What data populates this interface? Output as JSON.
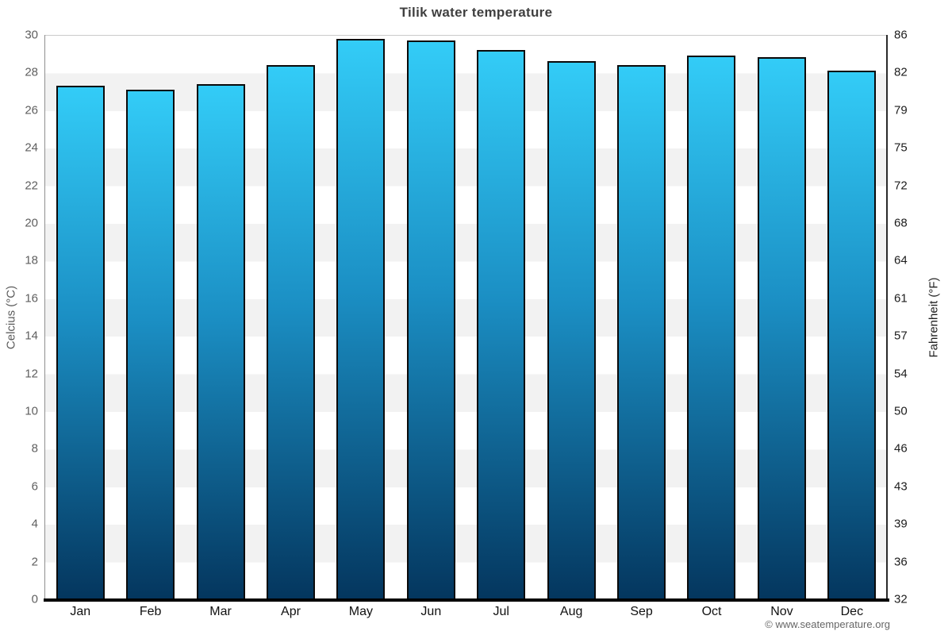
{
  "title": "Tilik water temperature",
  "footer": {
    "credit": "© www.seatemperature.org"
  },
  "chart_data": {
    "type": "bar",
    "title": "Tilik water temperature",
    "categories": [
      "Jan",
      "Feb",
      "Mar",
      "Apr",
      "May",
      "Jun",
      "Jul",
      "Aug",
      "Sep",
      "Oct",
      "Nov",
      "Dec"
    ],
    "values": [
      27.3,
      27.1,
      27.4,
      28.4,
      29.8,
      29.7,
      29.2,
      28.6,
      28.4,
      28.9,
      28.8,
      28.1
    ],
    "ylabel_left": "Celcius (°C)",
    "ylabel_right": "Fahrenheit (°F)",
    "yaxis_left": {
      "ticks": [
        30,
        28,
        26,
        24,
        22,
        20,
        18,
        16,
        14,
        12,
        10,
        8,
        6,
        4,
        2,
        0
      ],
      "range": [
        0,
        30
      ]
    },
    "yaxis_right": {
      "ticks": [
        86,
        82,
        79,
        75,
        72,
        68,
        64,
        61,
        57,
        54,
        50,
        46,
        43,
        39,
        36,
        32
      ],
      "range": [
        32,
        86
      ]
    },
    "layout": {
      "grid": "alternating-bands",
      "legend": "none",
      "bands_per_axis": 15
    },
    "colors": {
      "bar_top": "#33ccf7",
      "bar_mid": "#1b8fc4",
      "bar_bottom": "#04365e",
      "bar_border": "#0a0a0a",
      "band_gray": "#f2f2f2",
      "band_white": "#ffffff"
    }
  }
}
